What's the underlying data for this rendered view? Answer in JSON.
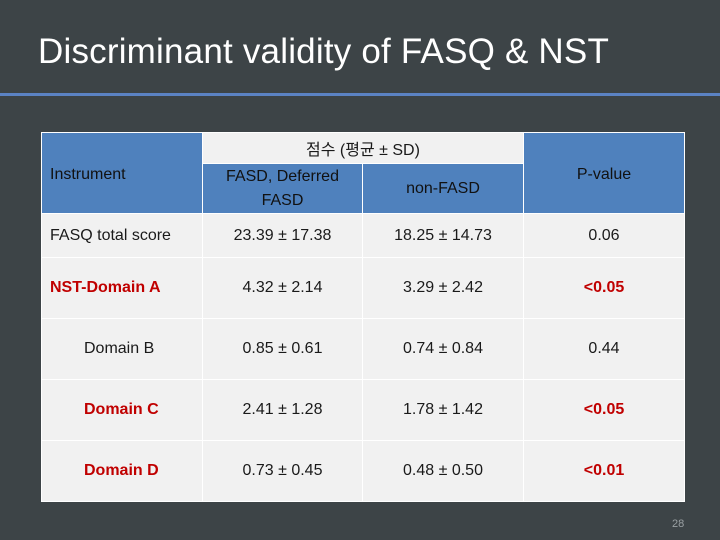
{
  "slide": {
    "title": "Discriminant validity of FASQ & NST",
    "page_number": "28",
    "accent_color": "#5b83c4"
  },
  "table": {
    "group_header": "점수 (평균 ± SD)",
    "headers": {
      "instrument": "Instrument",
      "fasd": "FASD, Deferred FASD",
      "nonfasd": "non-FASD",
      "pvalue": "P-value"
    },
    "rows": [
      {
        "label": "FASQ total score",
        "fasd": "23.39 ± 17.38",
        "nonfasd": "18.25 ± 14.73",
        "p": "0.06",
        "highlight": false
      },
      {
        "label": "NST-Domain A",
        "fasd": "4.32 ± 2.14",
        "nonfasd": "3.29 ± 2.42",
        "p": "<0.05",
        "highlight": true
      },
      {
        "label": "Domain B",
        "fasd": "0.85 ± 0.61",
        "nonfasd": "0.74 ± 0.84",
        "p": "0.44",
        "highlight": false
      },
      {
        "label": "Domain C",
        "fasd": "2.41 ± 1.28",
        "nonfasd": "1.78 ± 1.42",
        "p": "<0.05",
        "highlight": true
      },
      {
        "label": "Domain D",
        "fasd": "0.73 ± 0.45",
        "nonfasd": "0.48 ± 0.50",
        "p": "<0.01",
        "highlight": true
      }
    ],
    "highlight_color": "#c00000",
    "header_color": "#4f81bd"
  }
}
